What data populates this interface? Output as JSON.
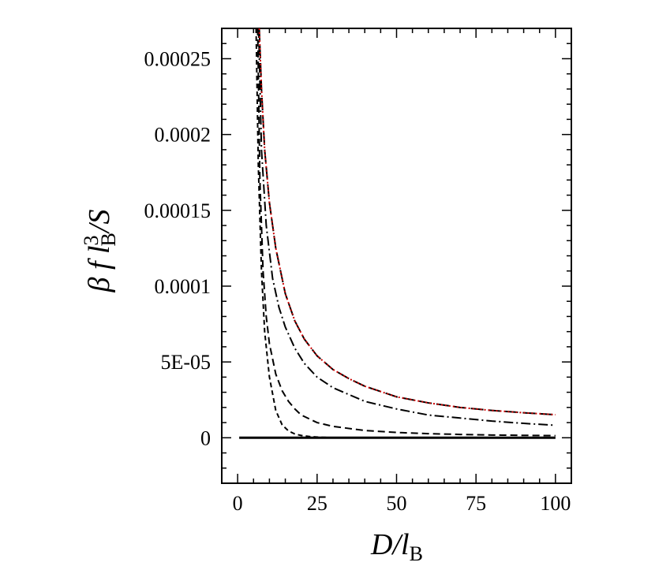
{
  "chart_data": {
    "type": "line",
    "title": "",
    "xlabel": {
      "main": "D/l",
      "sub": "B"
    },
    "ylabel": {
      "prefix": "β f l",
      "sup": "3",
      "sub": "B",
      "suffix": "/S"
    },
    "xlim": [
      -5,
      105
    ],
    "ylim": [
      -3e-05,
      0.00027
    ],
    "x_ticks": [
      {
        "value": 0,
        "label": "0"
      },
      {
        "value": 25,
        "label": "25"
      },
      {
        "value": 50,
        "label": "50"
      },
      {
        "value": 75,
        "label": "75"
      },
      {
        "value": 100,
        "label": "100"
      }
    ],
    "y_ticks": [
      {
        "value": 0,
        "label": "0"
      },
      {
        "value": 5e-05,
        "label": "5E-05"
      },
      {
        "value": 0.0001,
        "label": "0.0001"
      },
      {
        "value": 0.00015,
        "label": "0.00015"
      },
      {
        "value": 0.0002,
        "label": "0.0002"
      },
      {
        "value": 0.00025,
        "label": "0.00025"
      }
    ],
    "grid": false,
    "series": [
      {
        "style": "solid",
        "color": "#000000",
        "x": [
          0.5,
          100
        ],
        "y": [
          0,
          0
        ]
      },
      {
        "style": "dashed-short",
        "color": "#000000",
        "x": [
          5.8,
          6.5,
          7.5,
          8.5,
          10,
          12,
          14,
          16,
          18,
          20,
          23,
          26,
          30
        ],
        "y": [
          0.00027,
          0.00018,
          0.00011,
          7e-05,
          4e-05,
          1.8e-05,
          8.5e-06,
          4.5e-06,
          2.5e-06,
          1.5e-06,
          7e-07,
          3e-07,
          1e-07
        ]
      },
      {
        "style": "dashed",
        "color": "#000000",
        "x": [
          6.3,
          7,
          8,
          9,
          10,
          12,
          14,
          16,
          18,
          20,
          25,
          30,
          40,
          50,
          60,
          70,
          80,
          90,
          100
        ],
        "y": [
          0.00027,
          0.00017,
          0.00011,
          8e-05,
          6.2e-05,
          4.2e-05,
          3.1e-05,
          2.4e-05,
          1.9e-05,
          1.5e-05,
          1e-05,
          7.5e-06,
          4.8e-06,
          3.5e-06,
          2.7e-06,
          2.2e-06,
          1.8e-06,
          1.6e-06,
          1.4e-06
        ]
      },
      {
        "style": "dashdot",
        "color": "#000000",
        "x": [
          6.6,
          7.5,
          9,
          11,
          13,
          15,
          18,
          21,
          25,
          30,
          40,
          50,
          60,
          70,
          80,
          90,
          100
        ],
        "y": [
          0.00027,
          0.00019,
          0.00014,
          0.000105,
          8.6e-05,
          7.3e-05,
          5.9e-05,
          4.9e-05,
          4e-05,
          3.3e-05,
          2.4e-05,
          1.9e-05,
          1.5e-05,
          1.3e-05,
          1.1e-05,
          9.5e-06,
          8.2e-06
        ]
      },
      {
        "style": "longdash",
        "color": "#000000",
        "x": [
          6.8,
          7.5,
          8.5,
          10,
          12,
          15,
          18,
          21,
          25,
          30,
          35,
          40,
          50,
          60,
          70,
          80,
          90,
          100
        ],
        "y": [
          0.00027,
          0.00023,
          0.00019,
          0.000155,
          0.000125,
          9.5e-05,
          7.7e-05,
          6.5e-05,
          5.4e-05,
          4.5e-05,
          3.9e-05,
          3.4e-05,
          2.7e-05,
          2.3e-05,
          2e-05,
          1.8e-05,
          1.65e-05,
          1.52e-05
        ]
      },
      {
        "style": "dotted",
        "color": "#cc0000",
        "x": [
          6.8,
          7.5,
          8.5,
          10,
          12,
          15,
          18,
          21,
          25,
          30,
          35,
          40,
          50,
          60,
          70,
          80,
          90,
          100
        ],
        "y": [
          0.00027,
          0.00023,
          0.00019,
          0.000155,
          0.000125,
          9.5e-05,
          7.7e-05,
          6.5e-05,
          5.4e-05,
          4.5e-05,
          3.9e-05,
          3.4e-05,
          2.7e-05,
          2.3e-05,
          2e-05,
          1.8e-05,
          1.65e-05,
          1.52e-05
        ]
      }
    ]
  }
}
